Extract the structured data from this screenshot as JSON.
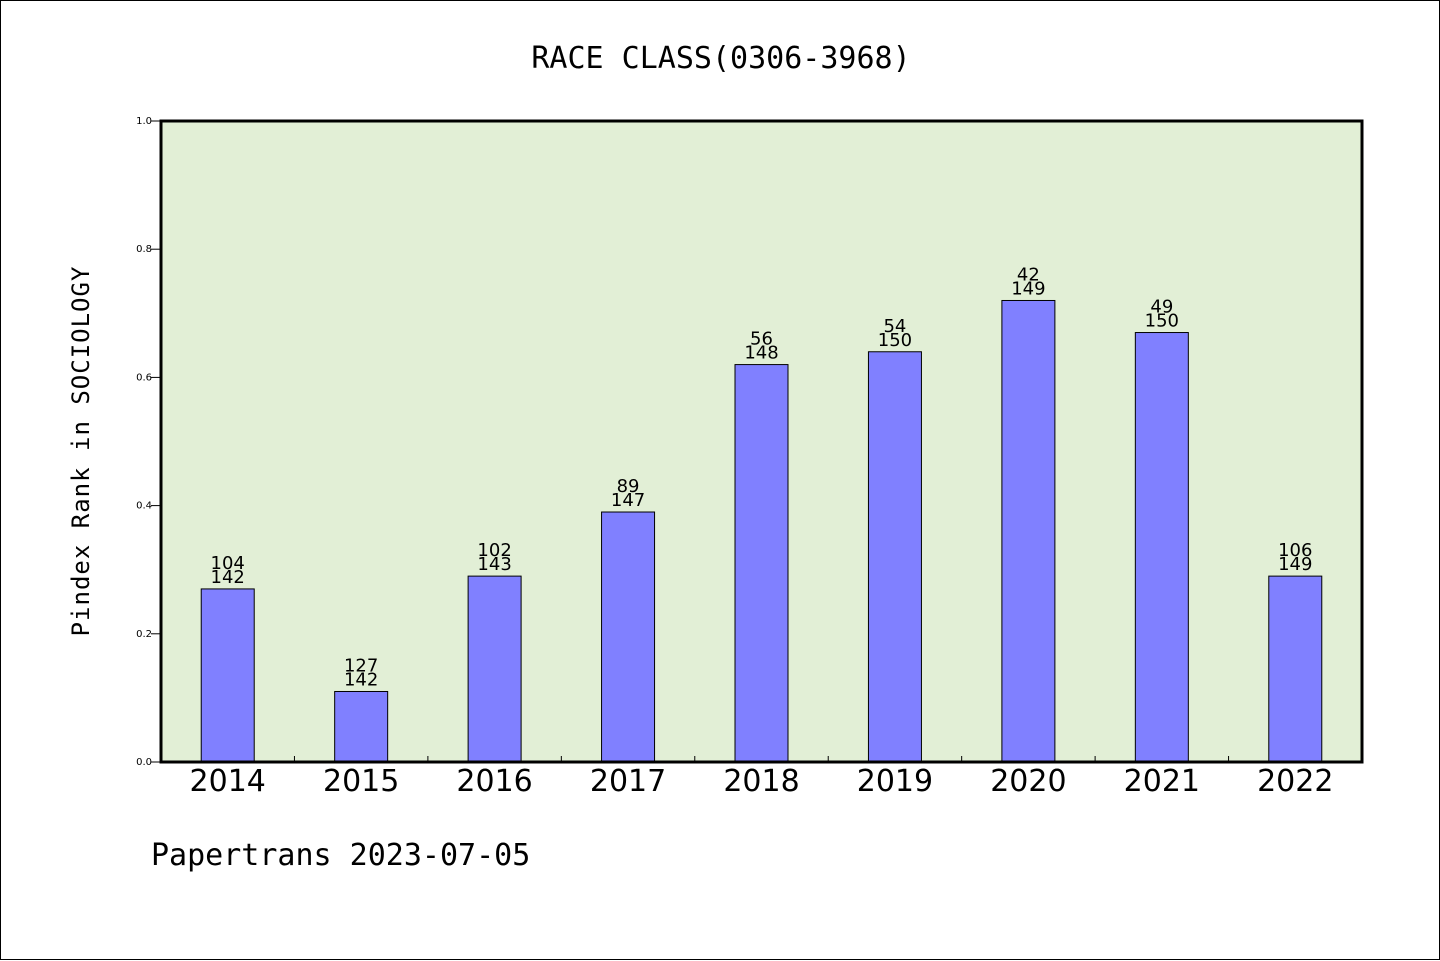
{
  "chart_data": {
    "type": "bar",
    "title": "RACE CLASS(0306-3968)",
    "xlabel": "",
    "ylabel": "Pindex Rank in SOCIOLOGY",
    "ylim": [
      0,
      1.0
    ],
    "yticks": [
      "0.0",
      "0.2",
      "0.4",
      "0.6",
      "0.8",
      "1.0"
    ],
    "categories": [
      "2014",
      "2015",
      "2016",
      "2017",
      "2018",
      "2019",
      "2020",
      "2021",
      "2022"
    ],
    "values": [
      0.27,
      0.11,
      0.29,
      0.39,
      0.62,
      0.64,
      0.72,
      0.67,
      0.29
    ],
    "rank_labels": [
      "104",
      "127",
      "102",
      "89",
      "56",
      "54",
      "42",
      "49",
      "106"
    ],
    "total_labels": [
      "142",
      "142",
      "143",
      "147",
      "148",
      "150",
      "149",
      "150",
      "149"
    ],
    "grid": false,
    "legend": "none",
    "colors": {
      "bar": "#8080ff",
      "plot_background": "#e2efd6",
      "axis": "#000000"
    }
  },
  "footer": "Papertrans 2023-07-05"
}
